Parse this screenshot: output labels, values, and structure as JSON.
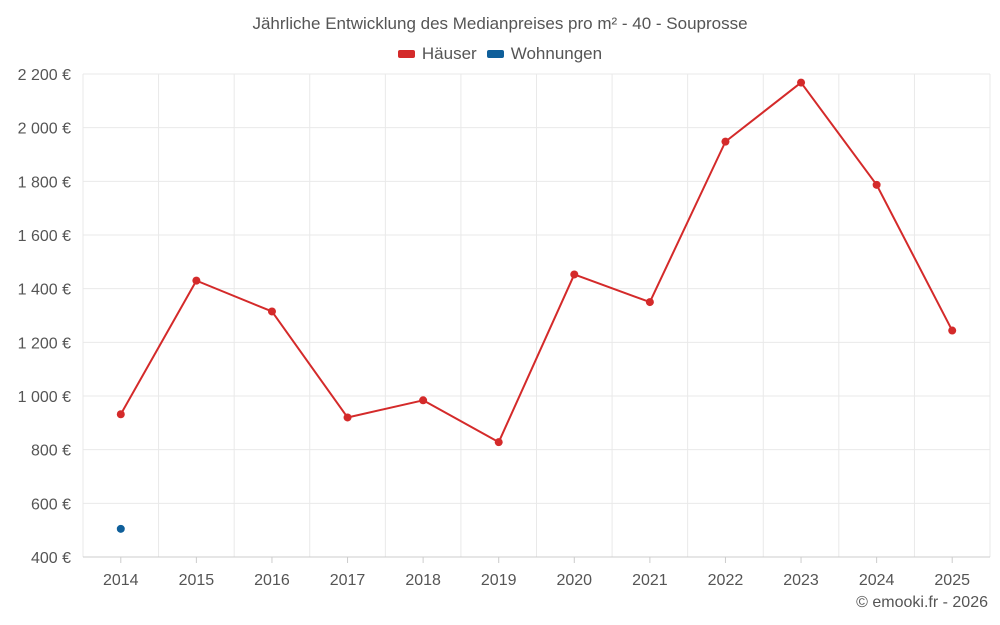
{
  "chart_data": {
    "type": "line",
    "title": "Jährliche Entwicklung des Medianpreises pro m² - 40 - Souprosse",
    "xlabel": "",
    "ylabel": "",
    "categories": [
      "2014",
      "2015",
      "2016",
      "2017",
      "2018",
      "2019",
      "2020",
      "2021",
      "2022",
      "2023",
      "2024",
      "2025"
    ],
    "ylim": [
      400,
      2200
    ],
    "yticks": [
      400,
      600,
      800,
      1000,
      1200,
      1400,
      1600,
      1800,
      2000,
      2200
    ],
    "ytick_labels": [
      "400 €",
      "600 €",
      "800 €",
      "1 000 €",
      "1 200 €",
      "1 400 €",
      "1 600 €",
      "1 800 €",
      "2 000 €",
      "2 200 €"
    ],
    "grid": true,
    "legend_position": "top-center",
    "series": [
      {
        "name": "Häuser",
        "color": "#d42a2a",
        "values": [
          932,
          1430,
          1315,
          920,
          984,
          828,
          1453,
          1350,
          1948,
          2168,
          1787,
          1244
        ]
      },
      {
        "name": "Wohnungen",
        "color": "#0f5f9a",
        "values": [
          505,
          null,
          null,
          null,
          null,
          null,
          null,
          null,
          null,
          null,
          null,
          null
        ]
      }
    ]
  },
  "credit": "© emooki.fr - 2026"
}
